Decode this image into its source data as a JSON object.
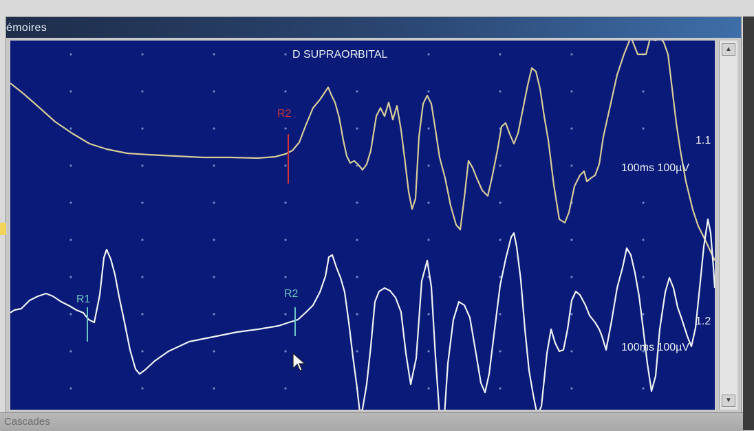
{
  "window": {
    "title": "émoires"
  },
  "plot": {
    "title": "D SUPRAORBITAL",
    "trace_1": {
      "label": "1.1",
      "scale": "100ms 100µV",
      "marker": "R2"
    },
    "trace_2": {
      "label": "1.2",
      "scale": "100ms 100µV",
      "marker_1": "R1",
      "marker_2": "R2"
    }
  },
  "bottom_panel": {
    "title": "Cascades"
  },
  "colors": {
    "plot_background": "#0a1a78",
    "trace_1": "#d7cc9a",
    "trace_2": "#eef2f4",
    "marker_red": "#d0343a",
    "marker_cyan": "#6bc6c6"
  },
  "icons": {
    "scroll_up": "triangle-up",
    "scroll_down": "triangle-down",
    "cursor": "arrow-pointer"
  }
}
